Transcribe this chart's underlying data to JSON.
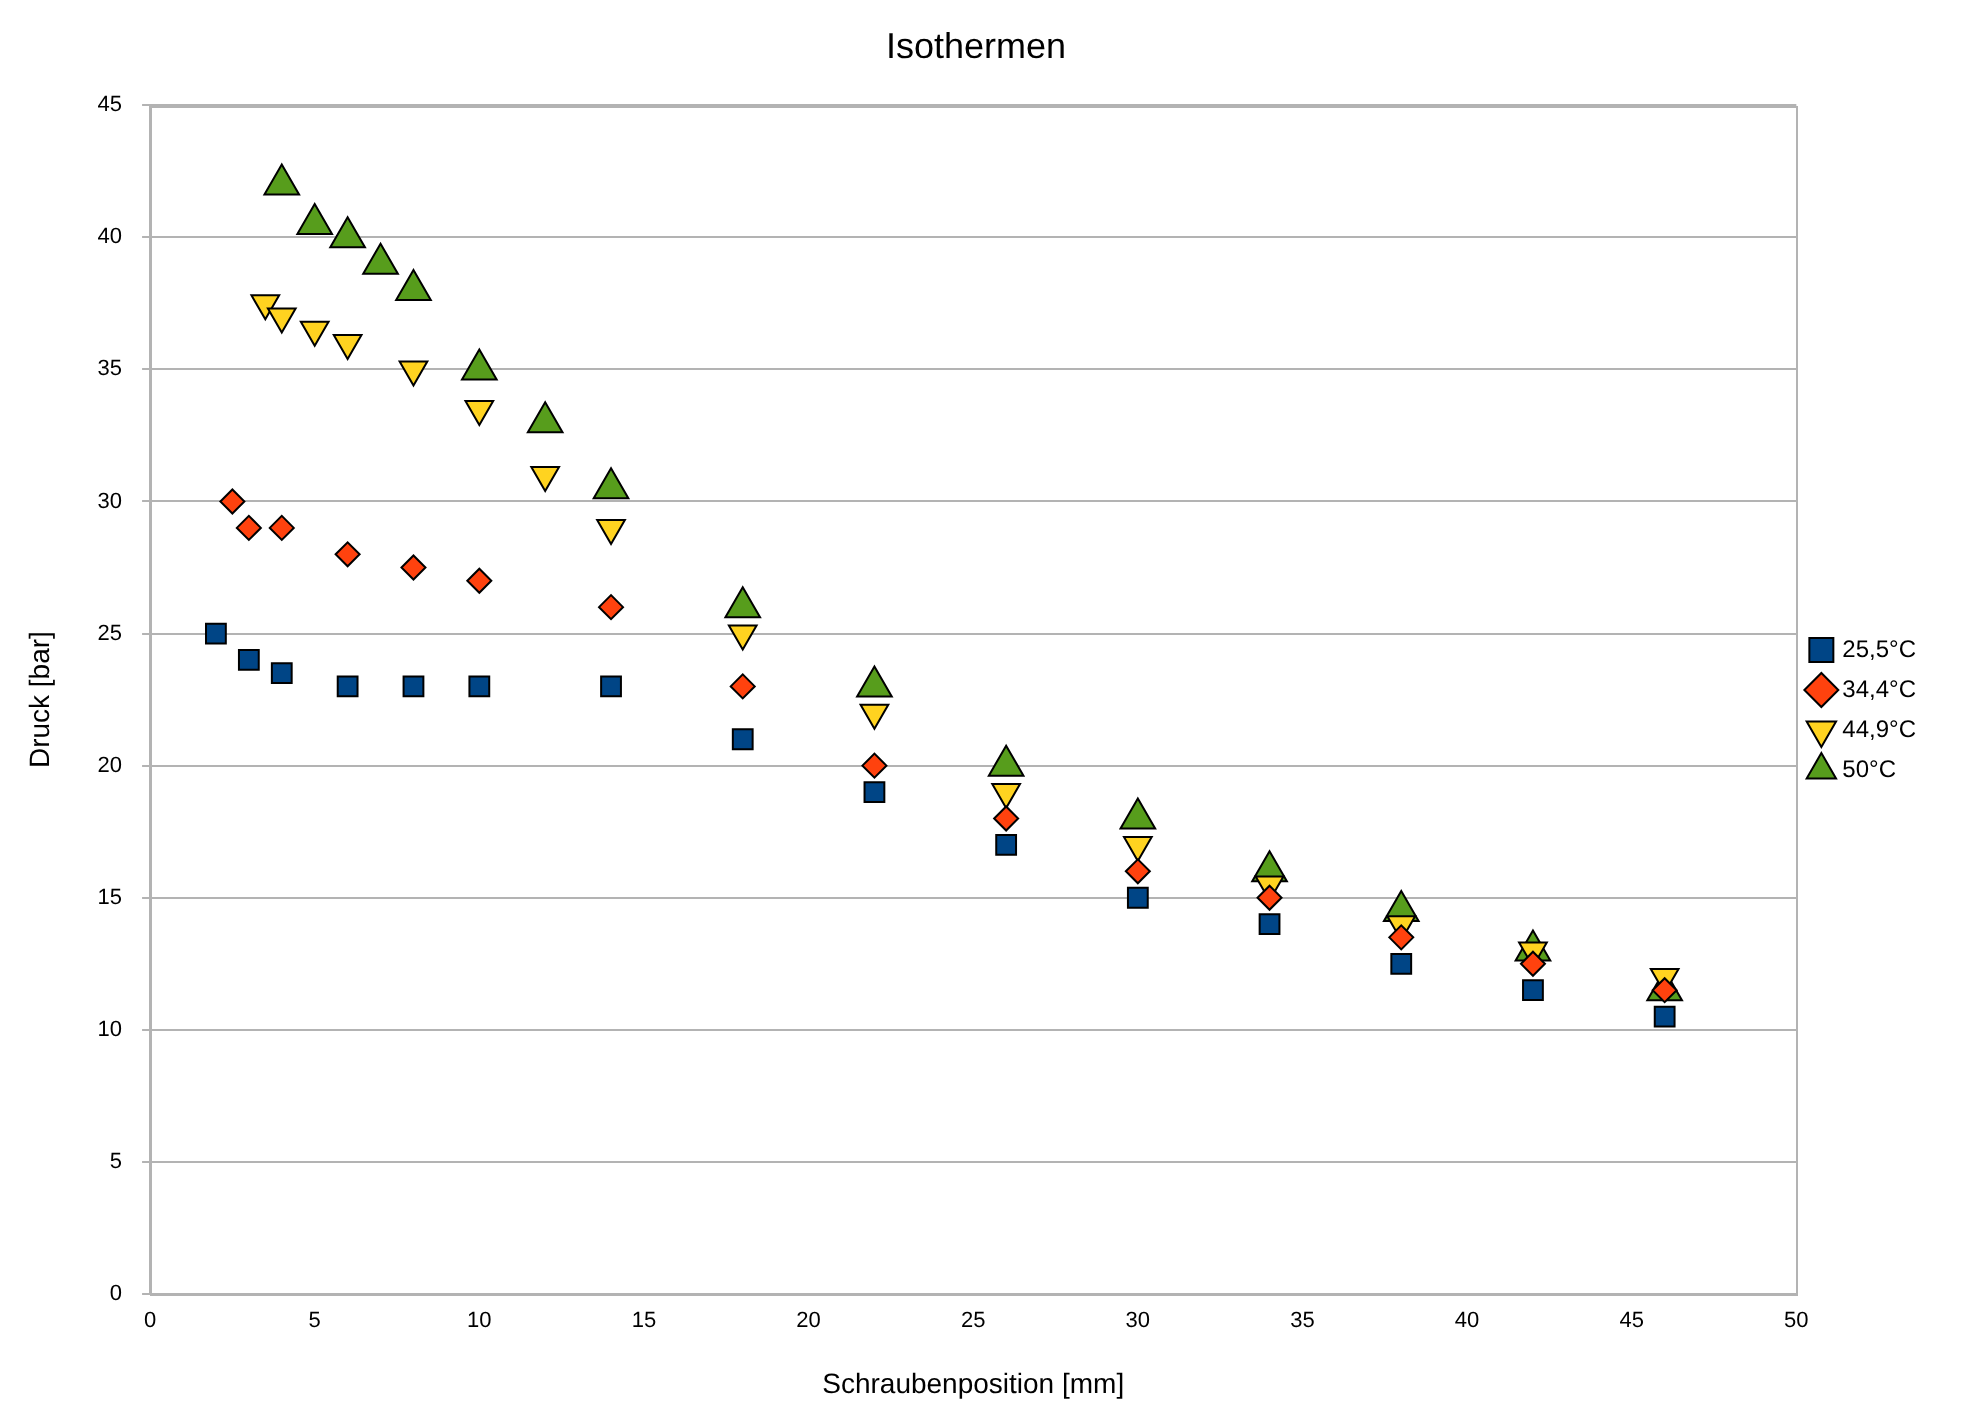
{
  "chart_data": {
    "type": "scatter",
    "title": "Isothermen",
    "xlabel": "Schraubenposition [mm]",
    "ylabel": "Druck [bar]",
    "xlim": [
      0,
      50
    ],
    "xticks": [
      0,
      5,
      10,
      15,
      20,
      25,
      30,
      35,
      40,
      45,
      50
    ],
    "ylim": [
      0,
      45
    ],
    "yticks": [
      0,
      5,
      10,
      15,
      20,
      25,
      30,
      35,
      40,
      45
    ],
    "grid": "y",
    "legend": "right",
    "series": [
      {
        "name": "25,5°C",
        "color": "#004586",
        "marker": "square",
        "x": [
          2,
          3,
          4,
          6,
          8,
          10,
          14,
          18,
          22,
          26,
          30,
          34,
          38,
          42,
          46
        ],
        "values": [
          25,
          24,
          23.5,
          23,
          23,
          23,
          23,
          21,
          19,
          17,
          15,
          14,
          12.5,
          11.5,
          10.5
        ]
      },
      {
        "name": "34,4°C",
        "color": "#ff420e",
        "marker": "diamond",
        "x": [
          2.5,
          3,
          4,
          6,
          8,
          10,
          14,
          18,
          22,
          26,
          30,
          34,
          38,
          42,
          46
        ],
        "values": [
          30,
          29,
          29,
          28,
          27.5,
          27,
          26,
          23,
          20,
          18,
          16,
          15,
          13.5,
          12.5,
          11.5
        ]
      },
      {
        "name": "44,9°C",
        "color": "#ffd320",
        "marker": "triangle-down",
        "x": [
          3.5,
          4,
          5,
          6,
          8,
          10,
          12,
          14,
          18,
          22,
          26,
          30,
          34,
          38,
          42,
          46
        ],
        "values": [
          37.5,
          37,
          36.5,
          36,
          35,
          33.5,
          31,
          29,
          25,
          22,
          19,
          17,
          15.5,
          14,
          13,
          12
        ]
      },
      {
        "name": "50°C",
        "color": "#579d1c",
        "marker": "triangle",
        "x": [
          4,
          5,
          6,
          7,
          8,
          10,
          12,
          14,
          18,
          22,
          26,
          30,
          34,
          38,
          42,
          46
        ],
        "values": [
          42,
          40.5,
          40,
          39,
          38,
          35,
          33,
          30.5,
          26,
          23,
          20,
          18,
          16,
          14.5,
          13,
          11.5
        ]
      }
    ]
  }
}
